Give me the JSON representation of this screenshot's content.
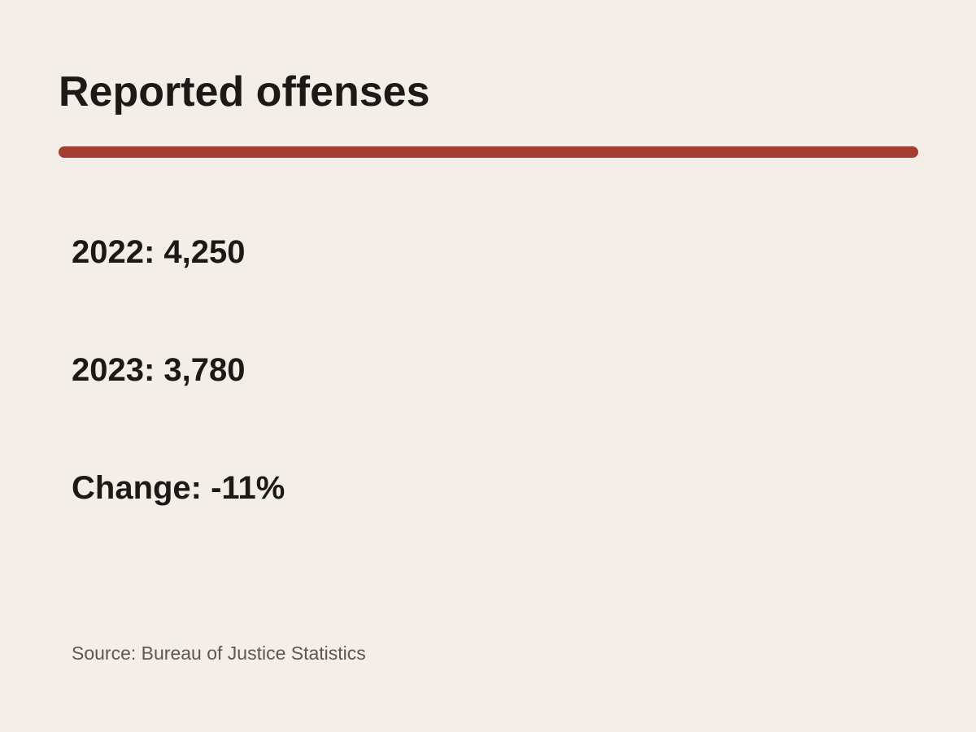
{
  "title": "Reported offenses",
  "colors": {
    "background": "#f3efe8",
    "accent": "#a53e32",
    "text": "#1c1a17",
    "muted_text": "#5e5850"
  },
  "stats": [
    {
      "label": "2022: 4,250"
    },
    {
      "label": "2023: 3,780"
    },
    {
      "label": "Change: -11%"
    }
  ],
  "source": "Source: Bureau of Justice Statistics"
}
